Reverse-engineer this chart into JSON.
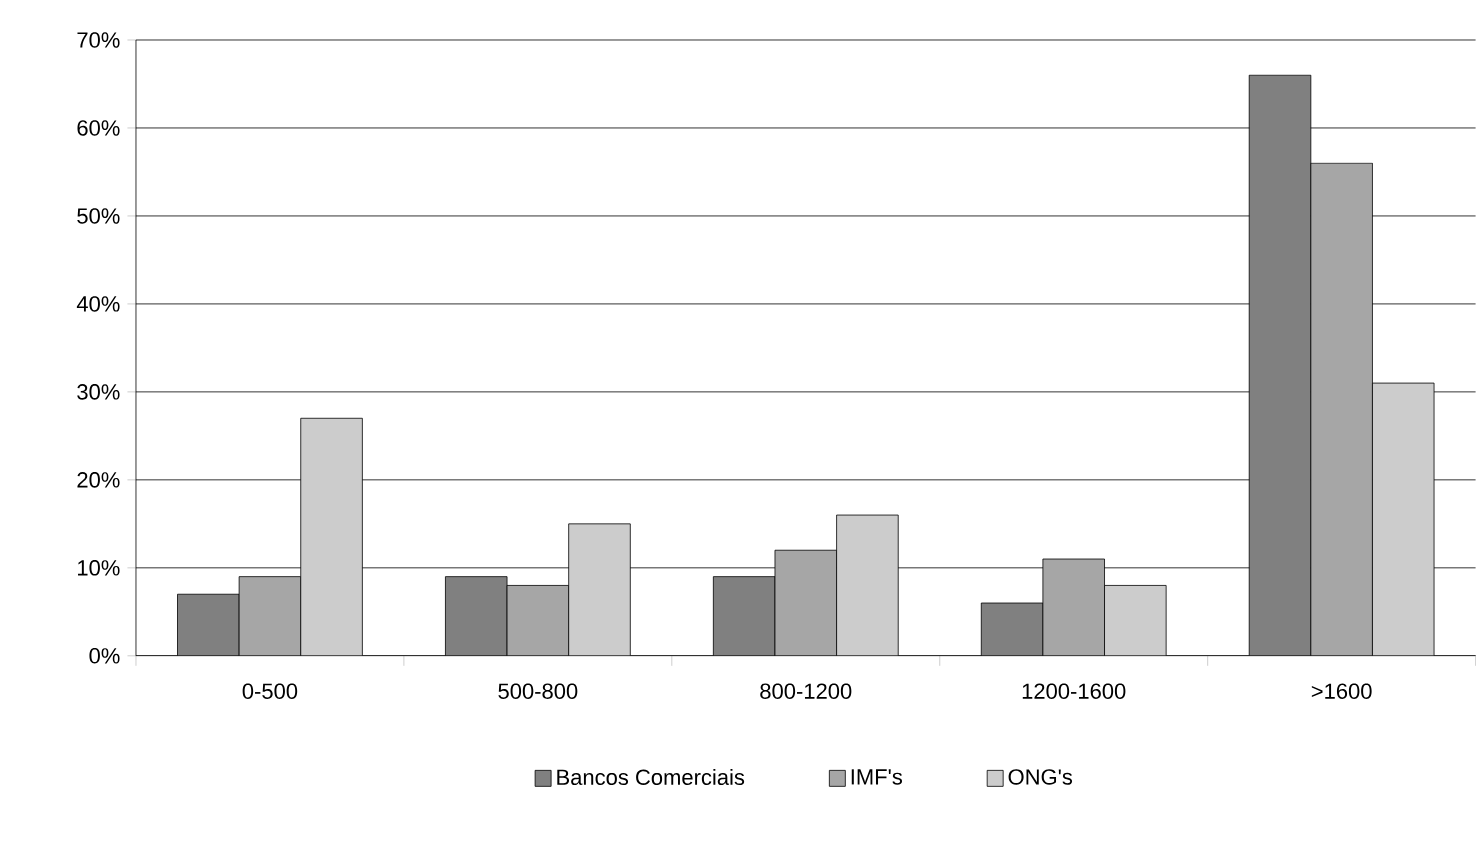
{
  "chart_data": {
    "type": "bar",
    "categories": [
      "0-500",
      "500-800",
      "800-1200",
      "1200-1600",
      ">1600"
    ],
    "series": [
      {
        "name": "Bancos Comerciais",
        "color": "#808080",
        "values": [
          7,
          9,
          9,
          6,
          66
        ]
      },
      {
        "name": "IMF's",
        "color": "#a6a6a6",
        "values": [
          9,
          8,
          12,
          11,
          56
        ]
      },
      {
        "name": "ONG's",
        "color": "#cccccc",
        "values": [
          27,
          15,
          16,
          8,
          31
        ]
      }
    ],
    "ylim": [
      0,
      70
    ],
    "yticks": [
      {
        "value": 0,
        "label": "0%"
      },
      {
        "value": 10,
        "label": "10%"
      },
      {
        "value": 20,
        "label": "20%"
      },
      {
        "value": 30,
        "label": "30%"
      },
      {
        "value": 40,
        "label": "40%"
      },
      {
        "value": 50,
        "label": "50%"
      },
      {
        "value": 60,
        "label": "60%"
      },
      {
        "value": 70,
        "label": "70%"
      }
    ],
    "grid": "y",
    "legend": "bottom"
  }
}
